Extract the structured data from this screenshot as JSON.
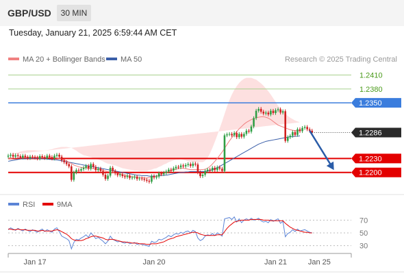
{
  "header": {
    "symbol": "GBP/USD",
    "timeframe": "30 MIN",
    "datetime": "Tuesday, January 21, 2025 6:59:44 AM CET"
  },
  "legend": {
    "ma20_bb": "MA 20 + Bollinger Bands",
    "ma50": "MA 50",
    "research": "Research © 2025 Trading Central",
    "rsi": "RSI",
    "ma9": "9MA"
  },
  "colors": {
    "up": "#2f9e44",
    "down": "#d02020",
    "ma20": "#f08080",
    "ma50": "#3a5ea8",
    "band": "#fde0e0",
    "resistance": "#a8d08d",
    "pivot": "#3b7ddd",
    "support": "#e30000",
    "arrow": "#2a5ca8",
    "rsi": "#5b84d6",
    "ma9": "#e30000"
  },
  "chart_data": {
    "type": "candlestick",
    "x_labels": [
      {
        "label": "Jan 17",
        "index": 11
      },
      {
        "label": "Jan 20",
        "index": 60
      },
      {
        "label": "Jan 21",
        "index": 110
      },
      {
        "label": "Jan 25",
        "index": 128
      }
    ],
    "ylim": [
      1.217,
      1.243
    ],
    "levels": [
      {
        "value": 1.241,
        "label": "1.2410",
        "role": "resistance"
      },
      {
        "value": 1.238,
        "label": "1.2380",
        "role": "resistance"
      },
      {
        "value": 1.235,
        "label": "1.2350",
        "role": "pivot"
      },
      {
        "value": 1.223,
        "label": "1.2230",
        "role": "support"
      },
      {
        "value": 1.22,
        "label": "1.2200",
        "role": "support"
      }
    ],
    "last_price": {
      "value": 1.2286,
      "label": "1.2286"
    },
    "forecast_arrow": {
      "from": [
        124,
        1.229
      ],
      "to": [
        134,
        1.2205
      ]
    },
    "close": [
      1.2236,
      1.2238,
      1.2234,
      1.2237,
      1.2235,
      1.2232,
      1.2236,
      1.2233,
      1.2231,
      1.2234,
      1.2233,
      1.2232,
      1.223,
      1.2235,
      1.2233,
      1.2231,
      1.2236,
      1.2233,
      1.223,
      1.2236,
      1.2238,
      1.2234,
      1.2226,
      1.2222,
      1.2218,
      1.2213,
      1.2184,
      1.22,
      1.2205,
      1.2204,
      1.2207,
      1.221,
      1.2214,
      1.2208,
      1.2218,
      1.2212,
      1.2205,
      1.2208,
      1.2203,
      1.2195,
      1.2186,
      1.2193,
      1.221,
      1.2203,
      1.2198,
      1.2194,
      1.2196,
      1.2192,
      1.219,
      1.2193,
      1.2188,
      1.2189,
      1.2191,
      1.2186,
      1.2187,
      1.2186,
      1.2184,
      1.2182,
      1.218,
      1.2192,
      1.2189,
      1.2191,
      1.2198,
      1.2196,
      1.2199,
      1.2202,
      1.2206,
      1.2204,
      1.2209,
      1.2212,
      1.2211,
      1.2215,
      1.2213,
      1.2216,
      1.2218,
      1.2214,
      1.2219,
      1.2217,
      1.22,
      1.2192,
      1.2195,
      1.2203,
      1.2206,
      1.2204,
      1.221,
      1.2205,
      1.2211,
      1.2208,
      1.2203,
      1.228,
      1.2282,
      1.2283,
      1.228,
      1.2285,
      1.2276,
      1.2283,
      1.2277,
      1.2283,
      1.229,
      1.2288,
      1.2299,
      1.2317,
      1.2333,
      1.2337,
      1.2331,
      1.2327,
      1.2329,
      1.2325,
      1.2333,
      1.2328,
      1.2334,
      1.2336,
      1.2329,
      1.2332,
      1.2268,
      1.2276,
      1.2279,
      1.2287,
      1.2281,
      1.2293,
      1.2289,
      1.2296,
      1.2298,
      1.2293,
      1.229,
      1.2286
    ],
    "ma20": [
      1.223,
      1.223,
      1.2231,
      1.2231,
      1.2231,
      1.2232,
      1.2232,
      1.2233,
      1.2233,
      1.2233,
      1.2233,
      1.2233,
      1.2233,
      1.2233,
      1.2233,
      1.2232,
      1.2232,
      1.2232,
      1.2232,
      1.2232,
      1.2231,
      1.223,
      1.2229,
      1.2227,
      1.2225,
      1.2222,
      1.2219,
      1.2216,
      1.2214,
      1.2212,
      1.2211,
      1.221,
      1.221,
      1.2209,
      1.2209,
      1.2208,
      1.2207,
      1.2207,
      1.2206,
      1.2205,
      1.2203,
      1.2202,
      1.2201,
      1.22,
      1.2199,
      1.2198,
      1.2196,
      1.2195,
      1.2194,
      1.2193,
      1.2192,
      1.2191,
      1.219,
      1.219,
      1.2189,
      1.2189,
      1.2188,
      1.2188,
      1.2189,
      1.219,
      1.2191,
      1.2192,
      1.2194,
      1.2196,
      1.2198,
      1.22,
      1.2202,
      1.2204,
      1.2206,
      1.2207,
      1.2208,
      1.2209,
      1.2209,
      1.2208,
      1.2207,
      1.2206,
      1.2206,
      1.2206,
      1.2206,
      1.2206,
      1.2206,
      1.2207,
      1.2209,
      1.2213,
      1.2218,
      1.2224,
      1.223,
      1.2237,
      1.2244,
      1.2252,
      1.226,
      1.2268,
      1.2275,
      1.2282,
      1.2288,
      1.2294,
      1.2299,
      1.2304,
      1.2308,
      1.2311,
      1.2314,
      1.2316,
      1.2318,
      1.2319,
      1.232,
      1.232,
      1.2319,
      1.2317,
      1.2314,
      1.231,
      1.2306,
      1.2302,
      1.23,
      1.2298,
      1.2296,
      1.2294,
      1.2292,
      1.2291,
      1.229,
      1.229,
      1.229
    ],
    "ma50": [
      1.2224,
      1.2225,
      1.2226,
      1.2227,
      1.2228,
      1.2229,
      1.2229,
      1.2229,
      1.223,
      1.223,
      1.223,
      1.223,
      1.223,
      1.223,
      1.2229,
      1.2229,
      1.2229,
      1.2228,
      1.2228,
      1.2227,
      1.2227,
      1.2226,
      1.2225,
      1.2224,
      1.2223,
      1.2222,
      1.2221,
      1.222,
      1.2219,
      1.2218,
      1.2217,
      1.2216,
      1.2215,
      1.2214,
      1.2213,
      1.2212,
      1.2211,
      1.221,
      1.2209,
      1.2208,
      1.2207,
      1.2206,
      1.2205,
      1.2204,
      1.2203,
      1.2202,
      1.2201,
      1.22,
      1.2199,
      1.2198,
      1.2197,
      1.2196,
      1.2195,
      1.2194,
      1.2194,
      1.2193,
      1.2193,
      1.2193,
      1.2192,
      1.2192,
      1.2192,
      1.2192,
      1.2193,
      1.2193,
      1.2194,
      1.2194,
      1.2195,
      1.2196,
      1.2197,
      1.2198,
      1.2199,
      1.22,
      1.22,
      1.2201,
      1.2201,
      1.2202,
      1.2202,
      1.2202,
      1.2202,
      1.2202,
      1.2202,
      1.2202,
      1.2203,
      1.2204,
      1.2206,
      1.2208,
      1.221,
      1.2213,
      1.2216,
      1.2219,
      1.2222,
      1.2225,
      1.2228,
      1.2231,
      1.2234,
      1.2237,
      1.224,
      1.2243,
      1.2246,
      1.2249,
      1.2252,
      1.2255,
      1.2258,
      1.2261,
      1.2263,
      1.2265,
      1.2267,
      1.2268,
      1.2269,
      1.227,
      1.2271,
      1.2272,
      1.2273,
      1.2274,
      1.2275,
      1.2276,
      1.2277,
      1.2277,
      1.2278,
      1.2278,
      1.2279
    ],
    "band_width": [
      0.0008,
      0.0009,
      0.001,
      0.0011,
      0.0012,
      0.0013,
      0.0014,
      0.0014,
      0.0015,
      0.0015,
      0.0015,
      0.0015,
      0.0014,
      0.0014,
      0.0014,
      0.0015,
      0.0016,
      0.0017,
      0.0018,
      0.002,
      0.0022,
      0.0024,
      0.0026,
      0.0028,
      0.003,
      0.0032,
      0.0034,
      0.0034,
      0.0033,
      0.0031,
      0.0029,
      0.0027,
      0.0026,
      0.0025,
      0.0024,
      0.0023,
      0.0022,
      0.0021,
      0.002,
      0.0019,
      0.0018,
      0.0017,
      0.0017,
      0.0016,
      0.0016,
      0.0015,
      0.0015,
      0.0014,
      0.0014,
      0.0014,
      0.0014,
      0.0014,
      0.0014,
      0.0014,
      0.0014,
      0.0014,
      0.0015,
      0.0015,
      0.0016,
      0.0016,
      0.0017,
      0.0017,
      0.0018,
      0.0018,
      0.0019,
      0.0019,
      0.002,
      0.002,
      0.002,
      0.002,
      0.0019,
      0.0019,
      0.0018,
      0.0018,
      0.0017,
      0.0017,
      0.0016,
      0.0016,
      0.0016,
      0.0016,
      0.0016,
      0.0018,
      0.0022,
      0.0028,
      0.0035,
      0.0042,
      0.005,
      0.0058,
      0.0066,
      0.0074,
      0.0082,
      0.0088,
      0.0093,
      0.0096,
      0.0098,
      0.0099,
      0.0099,
      0.0098,
      0.0096,
      0.0093,
      0.009,
      0.0086,
      0.0082,
      0.0077,
      0.0072,
      0.0067,
      0.0062,
      0.0058,
      0.0054,
      0.005,
      0.0046,
      0.0042,
      0.0038,
      0.0034,
      0.0031,
      0.0028,
      0.0026,
      0.0024,
      0.0022,
      0.002,
      0.0018,
      0.0016
    ],
    "rsi": {
      "yticks": [
        30,
        50,
        70
      ],
      "ylim": [
        20,
        80
      ],
      "values": [
        55,
        58,
        56,
        54,
        57,
        55,
        53,
        56,
        54,
        52,
        55,
        53,
        51,
        54,
        56,
        52,
        55,
        53,
        51,
        56,
        58,
        52,
        45,
        43,
        41,
        38,
        25,
        35,
        40,
        39,
        42,
        44,
        47,
        43,
        50,
        46,
        41,
        43,
        40,
        37,
        33,
        37,
        45,
        40,
        38,
        36,
        37,
        35,
        34,
        36,
        33,
        34,
        35,
        32,
        33,
        32,
        31,
        30,
        29,
        37,
        35,
        36,
        40,
        39,
        41,
        43,
        46,
        44,
        47,
        49,
        48,
        51,
        49,
        52,
        53,
        50,
        54,
        52,
        42,
        38,
        40,
        45,
        47,
        46,
        49,
        46,
        50,
        48,
        45,
        72,
        73,
        74,
        71,
        75,
        67,
        72,
        66,
        70,
        72,
        70,
        73,
        70,
        71,
        73,
        69,
        67,
        68,
        66,
        71,
        68,
        70,
        72,
        65,
        68,
        44,
        49,
        51,
        55,
        52,
        56,
        53,
        54,
        55,
        53,
        51,
        50
      ],
      "ma9": [
        56,
        56,
        55,
        55,
        56,
        55,
        55,
        55,
        54,
        54,
        54,
        54,
        53,
        53,
        54,
        53,
        53,
        53,
        53,
        54,
        55,
        54,
        52,
        50,
        48,
        45,
        41,
        39,
        38,
        38,
        38,
        39,
        41,
        42,
        44,
        45,
        45,
        44,
        43,
        42,
        40,
        39,
        40,
        40,
        39,
        38,
        37,
        36,
        36,
        35,
        35,
        34,
        34,
        34,
        33,
        33,
        33,
        32,
        32,
        33,
        33,
        33,
        34,
        35,
        36,
        38,
        40,
        41,
        42,
        44,
        45,
        46,
        47,
        48,
        49,
        50,
        51,
        51,
        50,
        48,
        47,
        46,
        46,
        46,
        46,
        46,
        47,
        47,
        47,
        52,
        57,
        61,
        64,
        67,
        68,
        69,
        70,
        70,
        70,
        70,
        71,
        71,
        71,
        71,
        71,
        70,
        70,
        70,
        69,
        69,
        69,
        69,
        69,
        69,
        65,
        62,
        59,
        57,
        55,
        54,
        53,
        52,
        51,
        51,
        50,
        50
      ]
    }
  }
}
